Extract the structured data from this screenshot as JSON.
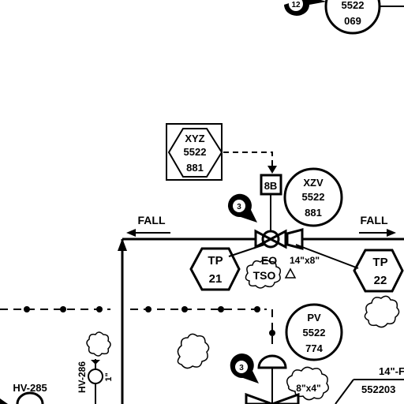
{
  "tags": {
    "top_bubble": {
      "line1": "5522",
      "line2": "069"
    },
    "top_badge": "12",
    "xyz": {
      "line1": "XYZ",
      "line2": "5522",
      "line3": "881"
    },
    "box_8b": "8B",
    "xzv": {
      "line1": "XZV",
      "line2": "5522",
      "line3": "881"
    },
    "badge_3a": "3",
    "badge_3b": "3",
    "tp21": {
      "line1": "TP",
      "line2": "21"
    },
    "tp22": {
      "line1": "TP",
      "line2": "22"
    },
    "eo": "EO",
    "tso": "TSO",
    "size_14x8": "14\"x8\"",
    "pv": {
      "line1": "PV",
      "line2": "5522",
      "line3": "774"
    },
    "size_8x4": "8\"x4\"",
    "line_14": "14\"-F",
    "line_552203": "552203",
    "hv285": "HV-285",
    "hv286": "HV-286",
    "one_inch": "1\""
  },
  "flow": {
    "fall_left": "FALL",
    "fall_right": "FALL"
  }
}
